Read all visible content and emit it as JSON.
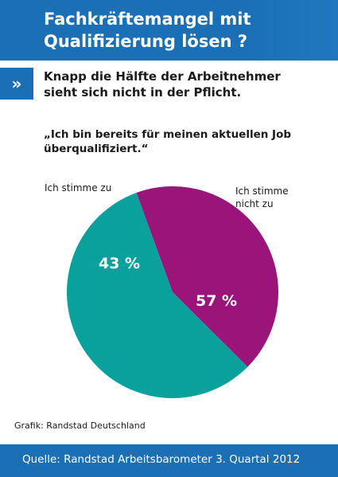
{
  "header": {
    "title": "Fachkräftemangel mit\nQualifizierung lösen ?"
  },
  "subtitle": {
    "marker": "»",
    "text": "Knapp die Hälfte der Arbeitnehmer\nsieht sich nicht in der Pflicht."
  },
  "question": "„Ich bin bereits für meinen aktuellen Job\nüberqualifiziert.“",
  "chart_data": {
    "type": "pie",
    "title": "„Ich bin bereits für meinen aktuellen Job überqualifiziert.“",
    "unit": "%",
    "slices": [
      {
        "name": "Ich stimme zu",
        "value": 43,
        "label": "43 %",
        "color": "#9a1479"
      },
      {
        "name": "Ich stimme nicht zu",
        "value": 57,
        "label": "57 %",
        "color": "#0aa09c"
      }
    ],
    "legend_left": "Ich stimme zu",
    "legend_right": "Ich stimme\nnicht zu"
  },
  "credit": "Grafik: Randstad Deutschland",
  "footer": {
    "source": "Quelle: Randstad Arbeitsbarometer 3. Quartal 2012"
  },
  "colors": {
    "brand_blue": "#1a6fb5"
  }
}
